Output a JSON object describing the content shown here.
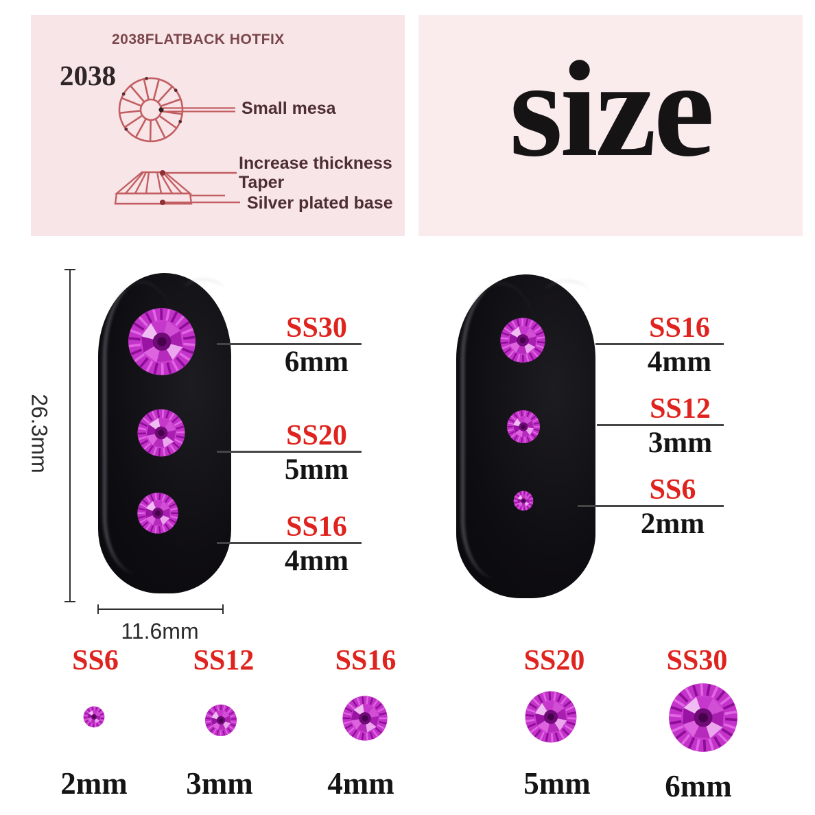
{
  "info_panel": {
    "title": "2038FLATBACK HOTFIX",
    "model_number": "2038",
    "callout_small_mesa": "Small mesa",
    "callout_increase_thickness": "Increase thickness",
    "callout_taper": "Taper",
    "callout_silver_base": "Silver plated base"
  },
  "size_panel": {
    "word": "size"
  },
  "left_nail": {
    "height_label": "26.3mm",
    "width_label": "11.6mm",
    "callouts": [
      {
        "ss": "SS30",
        "mm": "6mm"
      },
      {
        "ss": "SS20",
        "mm": "5mm"
      },
      {
        "ss": "SS16",
        "mm": "4mm"
      }
    ]
  },
  "right_nail": {
    "callouts": [
      {
        "ss": "SS16",
        "mm": "4mm"
      },
      {
        "ss": "SS12",
        "mm": "3mm"
      },
      {
        "ss": "SS6",
        "mm": "2mm"
      }
    ]
  },
  "size_row": {
    "items": [
      {
        "ss": "SS6",
        "mm": "2mm"
      },
      {
        "ss": "SS12",
        "mm": "3mm"
      },
      {
        "ss": "SS16",
        "mm": "4mm"
      },
      {
        "ss": "SS20",
        "mm": "5mm"
      },
      {
        "ss": "SS30",
        "mm": "6mm"
      }
    ]
  },
  "colors": {
    "accent_red": "#df231e",
    "label_black": "#141414",
    "underline_gray": "#454545",
    "panel_pink": "#f8e5e7",
    "panel_pink_right": "#faeced",
    "diagram_stroke": "#c25e62",
    "callout_text": "#4d2f33",
    "title_maroon": "#7b464b",
    "gem_magenta": "#c332c9",
    "dim_line": "#2e2e2e"
  }
}
